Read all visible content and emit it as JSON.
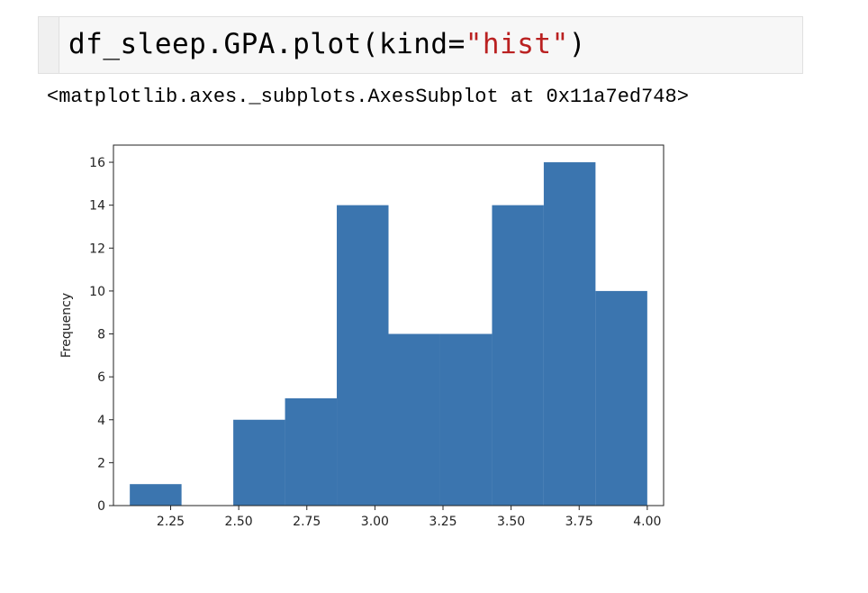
{
  "cell": {
    "input": {
      "code_prefix": "df_sleep.GPA.plot(kind=",
      "code_string": "\"hist\"",
      "code_suffix": ")"
    },
    "output": {
      "repr": "<matplotlib.axes._subplots.AxesSubplot at 0x11a7ed748>"
    }
  },
  "colors": {
    "bar": "#3b75af",
    "string_literal": "#ba2121"
  },
  "chart_data": {
    "type": "bar",
    "title": "",
    "xlabel": "",
    "ylabel": "Frequency",
    "xlim": [
      2.04,
      4.06
    ],
    "ylim": [
      0,
      16.8
    ],
    "bins": [
      {
        "x0": 2.1,
        "x1": 2.29,
        "count": 1
      },
      {
        "x0": 2.29,
        "x1": 2.48,
        "count": 0
      },
      {
        "x0": 2.48,
        "x1": 2.67,
        "count": 4
      },
      {
        "x0": 2.67,
        "x1": 2.86,
        "count": 5
      },
      {
        "x0": 2.86,
        "x1": 3.05,
        "count": 14
      },
      {
        "x0": 3.05,
        "x1": 3.24,
        "count": 8
      },
      {
        "x0": 3.24,
        "x1": 3.43,
        "count": 8
      },
      {
        "x0": 3.43,
        "x1": 3.62,
        "count": 14
      },
      {
        "x0": 3.62,
        "x1": 3.81,
        "count": 16
      },
      {
        "x0": 3.81,
        "x1": 4.0,
        "count": 10
      }
    ],
    "x_ticks": [
      2.25,
      2.5,
      2.75,
      3.0,
      3.25,
      3.5,
      3.75,
      4.0
    ],
    "x_tick_labels": [
      "2.25",
      "2.50",
      "2.75",
      "3.00",
      "3.25",
      "3.50",
      "3.75",
      "4.00"
    ],
    "y_ticks": [
      0,
      2,
      4,
      6,
      8,
      10,
      12,
      14,
      16
    ],
    "y_tick_labels": [
      "0",
      "2",
      "4",
      "6",
      "8",
      "10",
      "12",
      "14",
      "16"
    ],
    "grid": false,
    "legend": "none"
  }
}
